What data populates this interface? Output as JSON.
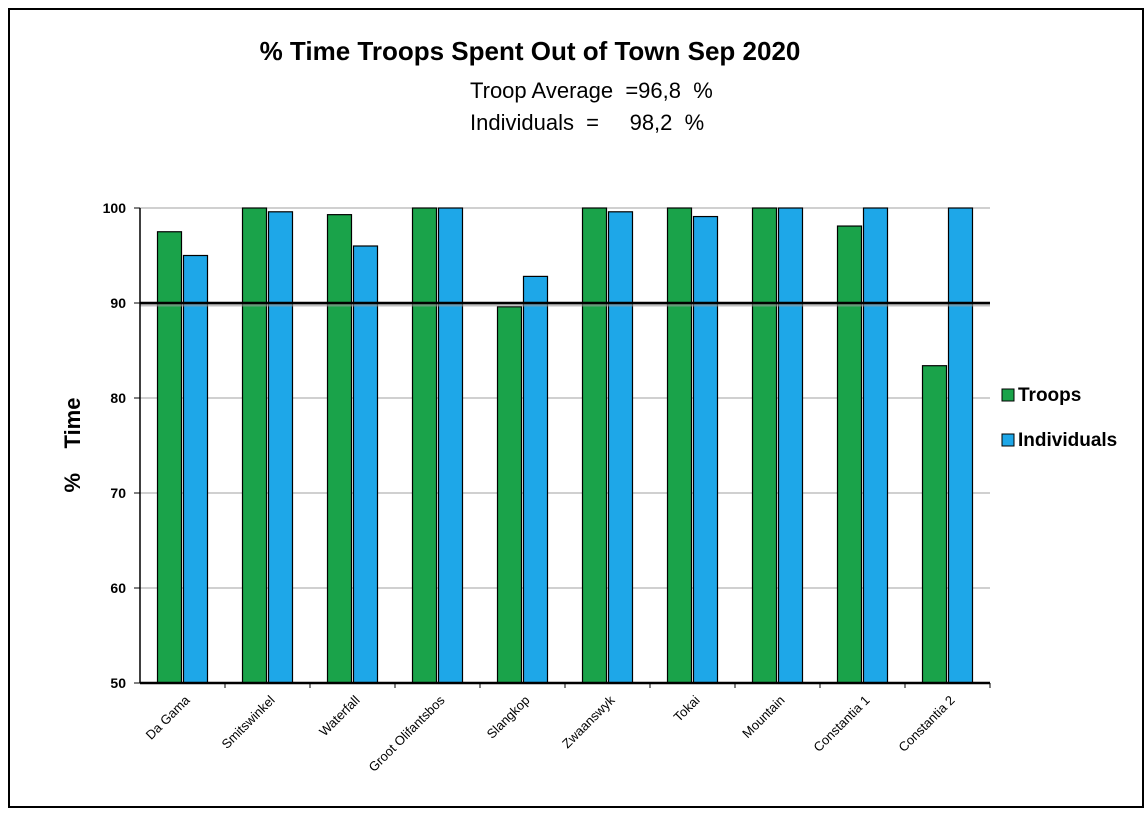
{
  "chart_data": {
    "type": "bar",
    "title": "% Time Troops Spent Out of Town Sep 2020",
    "subtitle_line1": "Troop Average  =96,8  %",
    "subtitle_line2": "Individuals  =     98,2  %",
    "ylabel": "%    Time",
    "xlabel": "",
    "ylim": [
      50,
      100
    ],
    "yticks": [
      "50",
      "60",
      "70",
      "80",
      "90",
      "100"
    ],
    "reference_line": 90,
    "categories": [
      "Da Gama",
      "Smitswinkel",
      "Waterfall",
      "Groot Olifantsbos",
      "Slangkop",
      "Zwaanswyk",
      "Tokai",
      "Mountain",
      "Constantia 1",
      "Constantia 2"
    ],
    "series": [
      {
        "name": "Troops",
        "color": "#1aa34a",
        "values": [
          97.5,
          100,
          99.3,
          100,
          89.6,
          100,
          100,
          100,
          98.1,
          83.4
        ]
      },
      {
        "name": "Individuals",
        "color": "#1ea7e8",
        "values": [
          95.0,
          99.6,
          96.0,
          100,
          92.8,
          99.6,
          99.1,
          100,
          100,
          100
        ]
      }
    ],
    "legend_position": "right",
    "grid": true
  }
}
